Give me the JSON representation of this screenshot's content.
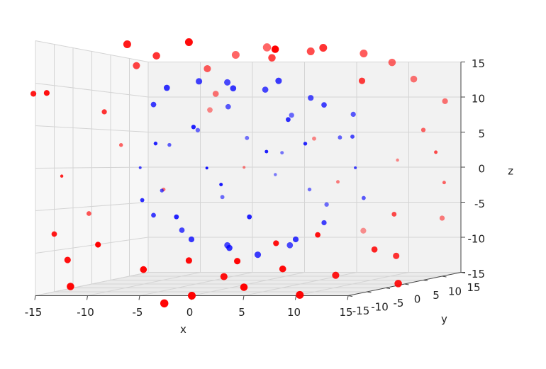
{
  "chart_data": {
    "type": "scatter3d",
    "xlabel": "x",
    "ylabel": "y",
    "zlabel": "z",
    "xlim": [
      -15,
      15
    ],
    "ylim": [
      -15,
      15
    ],
    "zlim": [
      -15,
      15
    ],
    "xticks": [
      -15,
      -10,
      -5,
      0,
      5,
      10,
      15
    ],
    "yticks": [
      -15,
      -10,
      -5,
      0,
      5,
      10,
      15
    ],
    "zticks": [
      -15,
      -10,
      -5,
      0,
      5,
      10,
      15
    ],
    "grid": true,
    "series": [
      {
        "color": "#ff0000",
        "x": [
          -17,
          -15,
          -12,
          -14,
          -15,
          -15,
          -13,
          -12,
          -8,
          -7,
          -5,
          -3,
          0,
          2,
          5,
          8,
          10,
          12,
          15,
          16,
          18,
          14,
          17,
          18,
          15,
          16,
          13,
          12,
          10,
          9,
          6,
          3,
          0,
          -3,
          -10,
          -6,
          -9,
          -5,
          -1,
          4,
          7,
          11,
          -11,
          -4,
          5,
          10,
          15,
          8,
          -1,
          12,
          -16,
          2,
          -8,
          6
        ],
        "y": [
          -10,
          -12,
          -5,
          5,
          -8,
          -10,
          -12,
          -14,
          -10,
          -5,
          3,
          -14,
          -15,
          -12,
          -15,
          -13,
          -14,
          -10,
          -8,
          -5,
          -10,
          0,
          5,
          0,
          5,
          8,
          8,
          5,
          3,
          -5,
          0,
          -2,
          5,
          5,
          -2,
          8,
          -15,
          -14,
          -13,
          -14,
          -12,
          -12,
          8,
          10,
          10,
          12,
          10,
          -15,
          -13,
          -3,
          2,
          12,
          12,
          14
        ],
        "z": [
          9,
          9,
          7,
          3,
          -1,
          -8,
          -11,
          -14,
          15,
          14,
          13,
          -16,
          -15,
          -13,
          -14,
          -12,
          -15,
          -13,
          -10,
          -11,
          -14,
          -6,
          -2,
          2,
          5,
          9,
          12,
          14,
          15,
          15,
          15,
          14,
          16,
          15,
          13,
          10,
          -9,
          -12,
          -11,
          -11,
          -9,
          -8,
          -3,
          0,
          -2,
          1,
          -7,
          14,
          15,
          11,
          -6,
          4,
          8,
          -9
        ]
      },
      {
        "color": "#0000ff",
        "x": [
          -8,
          -6,
          -4,
          -2,
          0,
          2,
          4,
          6,
          8,
          9,
          10,
          11,
          10,
          8,
          6,
          4,
          2,
          0,
          -2,
          -4,
          -6,
          -8,
          -9,
          -10,
          -9,
          -7,
          -3,
          0,
          3,
          5,
          -5,
          -1,
          7,
          2,
          -3,
          -6,
          5,
          1,
          -2,
          3,
          -8,
          8,
          -4,
          6,
          0
        ],
        "y": [
          -3,
          -5,
          -2,
          0,
          -4,
          -1,
          -3,
          0,
          -2,
          3,
          0,
          -2,
          3,
          -2,
          -4,
          0,
          -3,
          -5,
          0,
          -4,
          -1,
          -3,
          2,
          -1,
          4,
          6,
          8,
          9,
          8,
          7,
          7,
          10,
          5,
          6,
          3,
          -8,
          -9,
          -10,
          -9,
          -8,
          -6,
          -7,
          -8,
          -6,
          -11
        ],
        "z": [
          8,
          10,
          11,
          11,
          10,
          10,
          11,
          9,
          8,
          7,
          4,
          0,
          -4,
          -7,
          -9,
          -10,
          -11,
          -10,
          -10,
          -9,
          -8,
          -6,
          -3,
          0,
          3,
          5,
          4,
          2,
          -3,
          -5,
          -4,
          -1,
          4,
          7,
          8,
          3,
          2,
          -2,
          5,
          -6,
          -4,
          3,
          -6,
          6,
          0
        ]
      }
    ]
  }
}
